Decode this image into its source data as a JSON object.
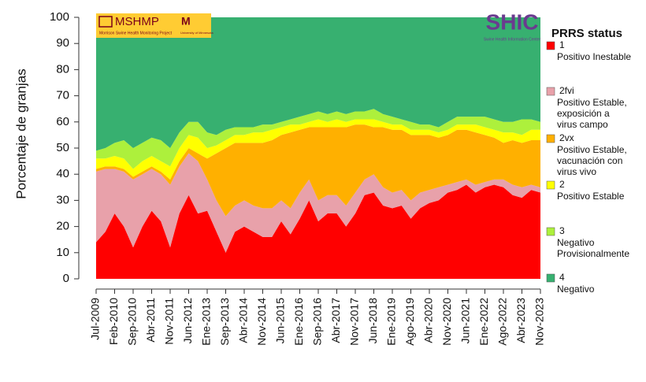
{
  "chart_data": {
    "type": "stacked_area",
    "y_label": "Porcentaje de granjas",
    "legend_title": "PRRS status",
    "logos": {
      "mshmp": "MSHMP",
      "mshmp_sub": "Morrison Swine Health Monitoring Project",
      "umn": "University of Minnesota",
      "shic": "SHIC",
      "shic_sub": "Swine Health Information Center"
    },
    "ylim": [
      0,
      100
    ],
    "yticks": [
      0,
      10,
      20,
      30,
      40,
      50,
      60,
      70,
      80,
      90,
      100
    ],
    "categories": [
      "Jul-2009",
      null,
      "Feb-2010",
      null,
      "Sep-2010",
      null,
      "Abr-2011",
      null,
      "Nov-2011",
      null,
      "Jun-2012",
      null,
      "Ene-2013",
      null,
      "Sep-2013",
      null,
      "Abr-2014",
      null,
      "Nov-2014",
      null,
      "Jun-2015",
      null,
      "Ene-2016",
      null,
      "Sep-2016",
      null,
      "Abr-2017",
      null,
      "Nov-2017",
      null,
      "Jun-2018",
      null,
      "Ene-2019",
      null,
      "Ago-2019",
      null,
      "Abr-2020",
      null,
      "Nov-2020",
      null,
      "Jun-2021",
      null,
      "Ene-2022",
      null,
      "Ago-2022",
      null,
      "Abr-2023",
      null,
      "Nov-2023"
    ],
    "series": [
      {
        "name": "1",
        "description": [
          "Positivo Inestable"
        ],
        "color": "#ff0000",
        "values": [
          14,
          18,
          25,
          20,
          12,
          20,
          26,
          22,
          12,
          25,
          32,
          25,
          26,
          18,
          10,
          18,
          20,
          18,
          16,
          16,
          22,
          17,
          23,
          30,
          22,
          25,
          25,
          20,
          25,
          32,
          33,
          28,
          27,
          28,
          23,
          27,
          29,
          30,
          33,
          34,
          36,
          33,
          35,
          36,
          35,
          32,
          31,
          34,
          33
        ]
      },
      {
        "name": "2fvi",
        "description": [
          "Positivo Estable,",
          "exposición a",
          "virus campo"
        ],
        "color": "#e8a1aa",
        "values": [
          27,
          24,
          17,
          21,
          26,
          20,
          16,
          18,
          24,
          18,
          16,
          20,
          12,
          12,
          14,
          10,
          10,
          10,
          11,
          11,
          8,
          10,
          10,
          8,
          8,
          7,
          7,
          8,
          8,
          6,
          7,
          7,
          6,
          6,
          7,
          6,
          5,
          5,
          3,
          3,
          2,
          3,
          2,
          2,
          3,
          4,
          4,
          2,
          2
        ]
      },
      {
        "name": "2vx",
        "description": [
          "Positivo Estable,",
          "vacunación con",
          "virus vivo"
        ],
        "color": "#ffb000",
        "values": [
          1,
          1,
          1,
          1,
          1,
          1,
          1,
          1,
          2,
          2,
          2,
          3,
          8,
          18,
          26,
          24,
          22,
          24,
          25,
          26,
          25,
          29,
          24,
          20,
          28,
          26,
          26,
          30,
          26,
          21,
          18,
          23,
          24,
          23,
          25,
          22,
          21,
          19,
          19,
          20,
          19,
          20,
          18,
          16,
          14,
          17,
          17,
          17,
          18
        ]
      },
      {
        "name": "2",
        "description": [
          "Positivo Estable"
        ],
        "color": "#ffff00",
        "values": [
          4,
          3,
          4,
          4,
          3,
          4,
          4,
          4,
          5,
          5,
          5,
          6,
          4,
          3,
          3,
          3,
          3,
          4,
          4,
          4,
          3,
          3,
          2,
          2,
          3,
          2,
          3,
          2,
          2,
          2,
          3,
          2,
          2,
          2,
          2,
          2,
          2,
          2,
          2,
          2,
          2,
          3,
          3,
          3,
          4,
          3,
          3,
          4,
          4
        ]
      },
      {
        "name": "3",
        "description": [
          "Negativo",
          "Provisionalmente"
        ],
        "color": "#adf03c",
        "values": [
          3,
          4,
          5,
          7,
          8,
          7,
          7,
          8,
          7,
          6,
          5,
          6,
          6,
          4,
          4,
          3,
          3,
          2,
          3,
          2,
          2,
          2,
          3,
          3,
          3,
          3,
          3,
          3,
          3,
          3,
          4,
          3,
          3,
          2,
          3,
          2,
          2,
          2,
          3,
          3,
          3,
          3,
          4,
          4,
          4,
          4,
          6,
          4,
          3
        ]
      },
      {
        "name": "4",
        "description": [
          "Negativo"
        ],
        "color": "#37b070",
        "values": [
          51,
          50,
          48,
          47,
          50,
          48,
          46,
          47,
          50,
          44,
          40,
          40,
          44,
          45,
          43,
          42,
          42,
          42,
          41,
          41,
          40,
          39,
          38,
          37,
          36,
          37,
          36,
          37,
          36,
          36,
          35,
          37,
          38,
          39,
          40,
          41,
          41,
          42,
          40,
          38,
          38,
          38,
          38,
          39,
          40,
          40,
          39,
          39,
          40
        ]
      }
    ]
  }
}
